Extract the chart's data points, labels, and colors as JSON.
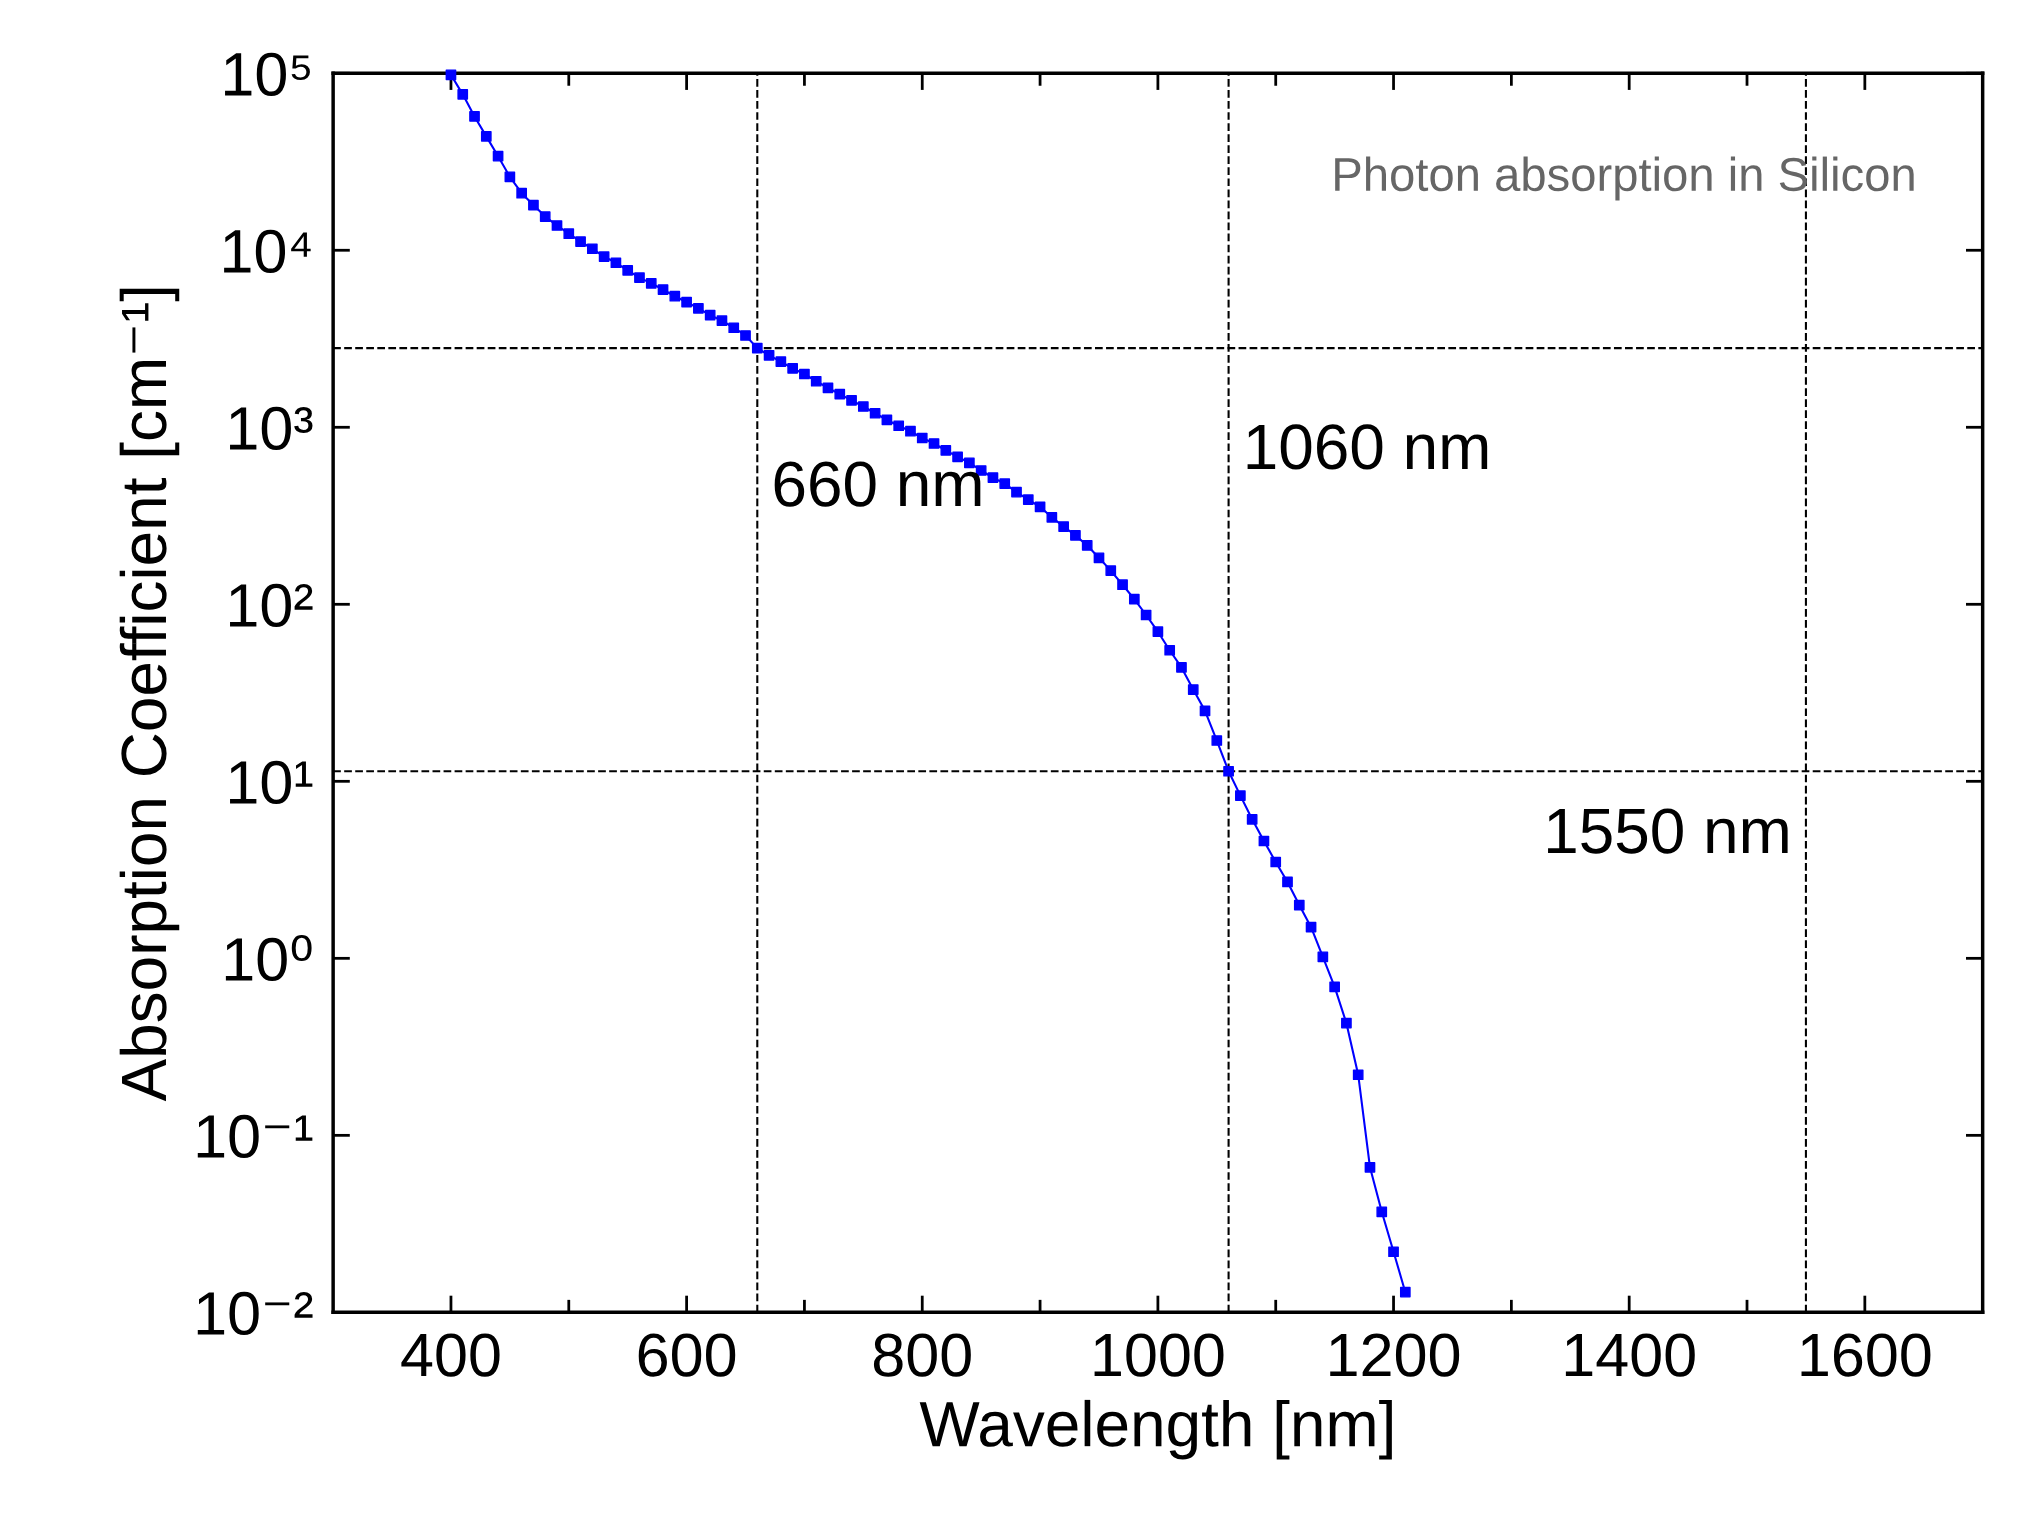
{
  "chart_data": {
    "type": "line",
    "xlabel": "Wavelength [nm]",
    "ylabel": "Absorption Coefficient [cm⁻¹]",
    "x": [
      400,
      410,
      420,
      430,
      440,
      450,
      460,
      470,
      480,
      490,
      500,
      510,
      520,
      530,
      540,
      550,
      560,
      570,
      580,
      590,
      600,
      610,
      620,
      630,
      640,
      650,
      660,
      670,
      680,
      690,
      700,
      710,
      720,
      730,
      740,
      750,
      760,
      770,
      780,
      790,
      800,
      810,
      820,
      830,
      840,
      850,
      860,
      870,
      880,
      890,
      900,
      910,
      920,
      930,
      940,
      950,
      960,
      970,
      980,
      990,
      1000,
      1010,
      1020,
      1030,
      1040,
      1050,
      1060,
      1070,
      1080,
      1090,
      1100,
      1110,
      1120,
      1130,
      1140,
      1150,
      1160,
      1170,
      1180,
      1190,
      1200,
      1210
    ],
    "series": [
      {
        "color": "#0000ff",
        "values": [
          98000,
          76000,
          57000,
          44000,
          34000,
          26000,
          21000,
          18000,
          15500,
          13800,
          12400,
          11200,
          10200,
          9200,
          8500,
          7700,
          7000,
          6500,
          6000,
          5500,
          5100,
          4700,
          4300,
          4000,
          3650,
          3300,
          2800,
          2550,
          2350,
          2150,
          2000,
          1820,
          1670,
          1540,
          1420,
          1310,
          1200,
          1100,
          1020,
          950,
          870,
          810,
          740,
          680,
          630,
          570,
          520,
          480,
          430,
          390,
          355,
          310,
          275,
          245,
          215,
          183,
          155,
          129,
          107,
          87,
          70,
          55,
          44,
          33,
          25,
          17,
          11.4,
          8.3,
          6.1,
          4.6,
          3.5,
          2.7,
          2.0,
          1.5,
          1.02,
          0.69,
          0.43,
          0.22,
          0.066,
          0.037,
          0.022,
          0.013
        ]
      }
    ],
    "log": "y",
    "marker": "square",
    "line_style": "solid",
    "grid": false,
    "xlim": [
      300,
      1700
    ],
    "xticks": [
      400,
      {
        "value": 500,
        "label": null
      },
      600,
      {
        "value": 700,
        "label": null
      },
      800,
      {
        "value": 900,
        "label": null
      },
      1000,
      {
        "value": 1100,
        "label": null
      },
      1200,
      {
        "value": 1300,
        "label": null
      },
      1400,
      {
        "value": 1500,
        "label": null
      },
      1600
    ],
    "ylim": [
      0.01,
      100000
    ],
    "yticks": [
      {
        "value": 0.01,
        "label": "10⁻²"
      },
      {
        "value": 0.1,
        "label": "10⁻¹"
      },
      {
        "value": 1,
        "label": "10⁰"
      },
      {
        "value": 10,
        "label": "10¹"
      },
      {
        "value": 100,
        "label": "10²"
      },
      {
        "value": 1000,
        "label": "10³"
      },
      {
        "value": 10000,
        "label": "10⁴"
      },
      {
        "value": 100000,
        "label": "10⁵"
      }
    ],
    "ref_lines": [
      {
        "axis": "x",
        "value": 660,
        "label": "660 nm",
        "color": "#000000",
        "line_style": "dashed"
      },
      {
        "axis": "x",
        "value": 1060,
        "label": "1060 nm",
        "color": "#000000",
        "line_style": "dashed"
      },
      {
        "axis": "x",
        "value": 1550,
        "label": "1550 nm",
        "color": "#000000",
        "line_style": "dashed"
      },
      {
        "axis": "y",
        "value": 2800,
        "color": "#000000",
        "line_style": "dashed"
      },
      {
        "axis": "y",
        "value": 11.4,
        "color": "#000000",
        "line_style": "dashed"
      }
    ],
    "annotations": [
      "Photon absorption in Silicon"
    ]
  }
}
